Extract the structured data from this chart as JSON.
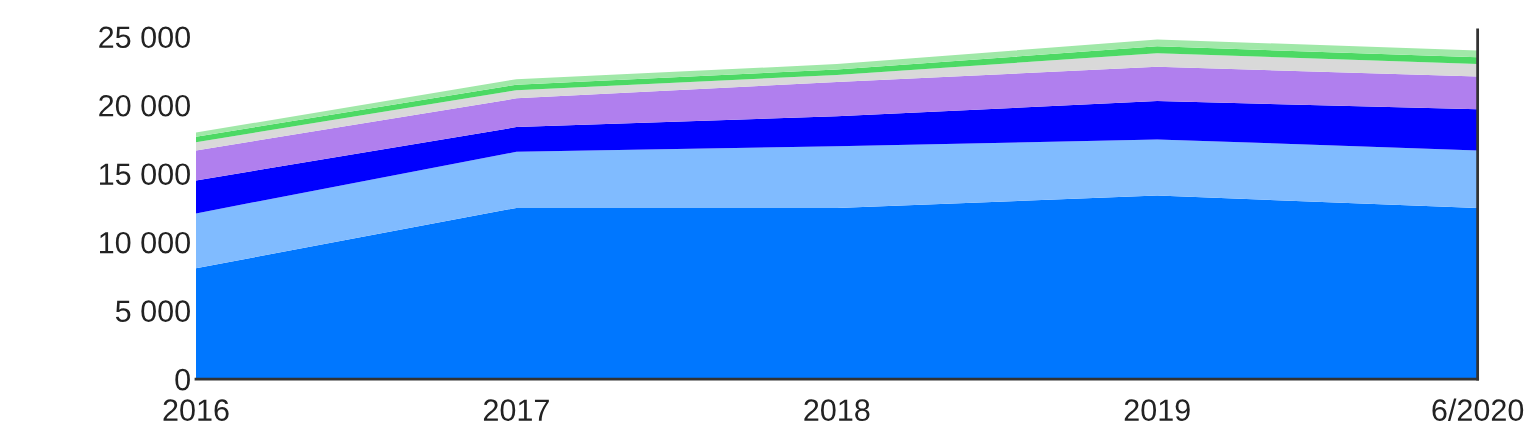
{
  "chart_data": {
    "type": "area",
    "stacked": true,
    "categories": [
      "2016",
      "2017",
      "2018",
      "2019",
      "6/2020"
    ],
    "series": [
      {
        "color": "#0077ff",
        "values": [
          8100,
          12500,
          12500,
          13400,
          12500
        ]
      },
      {
        "color": "#80bbff",
        "values": [
          4000,
          4100,
          4500,
          4100,
          4200
        ]
      },
      {
        "color": "#0000ff",
        "values": [
          2400,
          1800,
          2200,
          2800,
          3000
        ]
      },
      {
        "color": "#b07fee",
        "values": [
          2200,
          2100,
          2500,
          2500,
          2400
        ]
      },
      {
        "color": "#d9d9d9",
        "values": [
          600,
          600,
          500,
          1000,
          900
        ]
      },
      {
        "color": "#4cd964",
        "values": [
          400,
          400,
          400,
          500,
          500
        ]
      },
      {
        "color": "#a0e8a8",
        "values": [
          300,
          400,
          400,
          500,
          500
        ]
      }
    ],
    "ylim": [
      0,
      25500
    ],
    "yticks": [
      0,
      {
        "value": 5000,
        "label": "5 000"
      },
      {
        "value": 10000,
        "label": "10 000"
      },
      {
        "value": 15000,
        "label": "15 000"
      },
      {
        "value": 20000,
        "label": "20 000"
      },
      {
        "value": 25000,
        "label": "25 000"
      }
    ],
    "grid": false,
    "legend": false
  }
}
